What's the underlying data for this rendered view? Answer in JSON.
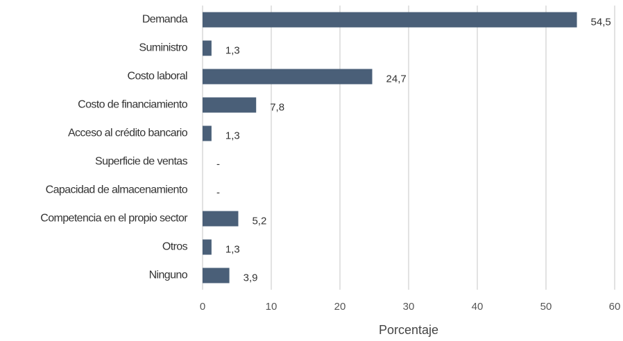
{
  "chart_data": {
    "type": "bar",
    "orientation": "horizontal",
    "categories": [
      "Demanda",
      "Suministro",
      "Costo laboral",
      "Costo de financiamiento",
      "Acceso al crédito bancario",
      "Superficie de ventas",
      "Capacidad de almacenamiento",
      "Competencia en el propio sector",
      "Otros",
      "Ninguno"
    ],
    "values": [
      54.5,
      1.3,
      24.7,
      7.8,
      1.3,
      0,
      0,
      5.2,
      1.3,
      3.9
    ],
    "value_labels": [
      "54,5",
      "1,3",
      "24,7",
      "7,8",
      "1,3",
      "-",
      "-",
      "5,2",
      "1,3",
      "3,9"
    ],
    "color": "#4a5f78",
    "xlabel": "Porcentaje",
    "xlim": [
      0,
      60
    ],
    "xticks": [
      0,
      10,
      20,
      30,
      40,
      50,
      60
    ],
    "grid": true
  }
}
